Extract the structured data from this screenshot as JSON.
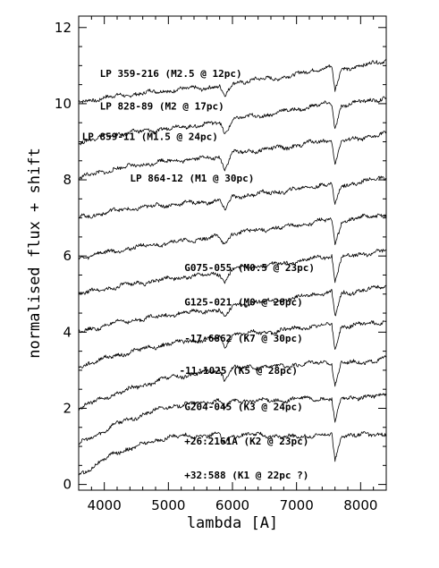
{
  "chart_data": {
    "type": "line",
    "title": "",
    "xlabel": "lambda [A]",
    "ylabel": "normalised flux + shift",
    "xlim": [
      3600,
      8400
    ],
    "ylim": [
      -0.15,
      12.3
    ],
    "x_ticks": [
      4000,
      5000,
      6000,
      7000,
      8000
    ],
    "y_ticks": [
      0,
      2,
      4,
      6,
      8,
      10,
      12
    ],
    "grid": false,
    "legend": "none",
    "line_color": "#000000",
    "series": [
      {
        "name": "LP 359-216 (M2.5 @ 12pc)",
        "label_x": 3930,
        "label_y": 10.7,
        "points": [
          [
            3600,
            10.05
          ],
          [
            4200,
            10.2
          ],
          [
            5000,
            10.35
          ],
          [
            5800,
            10.45
          ],
          [
            5880,
            10.15
          ],
          [
            6000,
            10.55
          ],
          [
            6500,
            10.65
          ],
          [
            6800,
            10.7
          ],
          [
            7000,
            10.75
          ],
          [
            7150,
            10.85
          ],
          [
            7300,
            10.9
          ],
          [
            7550,
            10.95
          ],
          [
            7600,
            10.35
          ],
          [
            7700,
            10.9
          ],
          [
            8000,
            11.0
          ],
          [
            8200,
            11.05
          ],
          [
            8400,
            11.15
          ]
        ]
      },
      {
        "name": "LP 828-89 (M2 @ 17pc)",
        "label_x": 3930,
        "label_y": 9.85,
        "points": [
          [
            3600,
            9.0
          ],
          [
            4200,
            9.2
          ],
          [
            5000,
            9.35
          ],
          [
            5800,
            9.5
          ],
          [
            5880,
            9.2
          ],
          [
            6000,
            9.6
          ],
          [
            6500,
            9.7
          ],
          [
            6800,
            9.8
          ],
          [
            7000,
            9.85
          ],
          [
            7300,
            9.95
          ],
          [
            7550,
            10.0
          ],
          [
            7600,
            9.35
          ],
          [
            7700,
            9.95
          ],
          [
            8000,
            10.05
          ],
          [
            8200,
            10.1
          ],
          [
            8400,
            10.15
          ]
        ]
      },
      {
        "name": "LP 859-11 (M1.5 @ 24pc)",
        "label_x": 3650,
        "label_y": 9.05,
        "points": [
          [
            3600,
            8.05
          ],
          [
            4200,
            8.3
          ],
          [
            5000,
            8.5
          ],
          [
            5800,
            8.6
          ],
          [
            5880,
            8.3
          ],
          [
            6000,
            8.7
          ],
          [
            6500,
            8.8
          ],
          [
            6800,
            8.85
          ],
          [
            7000,
            8.9
          ],
          [
            7300,
            9.0
          ],
          [
            7550,
            9.05
          ],
          [
            7600,
            8.4
          ],
          [
            7700,
            9.0
          ],
          [
            8000,
            9.1
          ],
          [
            8200,
            9.15
          ],
          [
            8400,
            9.2
          ]
        ]
      },
      {
        "name": "LP 864-12 (M1 @ 30pc)",
        "label_x": 4400,
        "label_y": 7.95,
        "points": [
          [
            3600,
            7.0
          ],
          [
            4200,
            7.2
          ],
          [
            5000,
            7.35
          ],
          [
            5800,
            7.45
          ],
          [
            5880,
            7.2
          ],
          [
            6000,
            7.55
          ],
          [
            6500,
            7.65
          ],
          [
            6800,
            7.7
          ],
          [
            7000,
            7.75
          ],
          [
            7300,
            7.85
          ],
          [
            7550,
            7.9
          ],
          [
            7600,
            7.3
          ],
          [
            7700,
            7.85
          ],
          [
            8000,
            7.95
          ],
          [
            8200,
            8.0
          ],
          [
            8400,
            8.05
          ]
        ]
      },
      {
        "name": "G075-055 (M0.5 @ 23pc)",
        "label_x": 5250,
        "label_y": 5.6,
        "points": [
          [
            3600,
            5.95
          ],
          [
            4200,
            6.15
          ],
          [
            5000,
            6.35
          ],
          [
            5800,
            6.5
          ],
          [
            5880,
            6.3
          ],
          [
            6000,
            6.6
          ],
          [
            6500,
            6.7
          ],
          [
            6800,
            6.75
          ],
          [
            7000,
            6.8
          ],
          [
            7300,
            6.9
          ],
          [
            7550,
            6.95
          ],
          [
            7600,
            6.3
          ],
          [
            7700,
            6.9
          ],
          [
            8000,
            7.0
          ],
          [
            8200,
            7.05
          ],
          [
            8400,
            7.1
          ]
        ]
      },
      {
        "name": "G125-021 (M0 @ 20pc)",
        "label_x": 5250,
        "label_y": 4.7,
        "points": [
          [
            3600,
            5.0
          ],
          [
            4200,
            5.2
          ],
          [
            5000,
            5.4
          ],
          [
            5800,
            5.55
          ],
          [
            5880,
            5.3
          ],
          [
            6000,
            5.65
          ],
          [
            6500,
            5.75
          ],
          [
            6800,
            5.8
          ],
          [
            7000,
            5.85
          ],
          [
            7300,
            5.95
          ],
          [
            7550,
            6.0
          ],
          [
            7600,
            5.35
          ],
          [
            7700,
            5.95
          ],
          [
            8000,
            6.05
          ],
          [
            8200,
            6.1
          ],
          [
            8400,
            6.15
          ]
        ]
      },
      {
        "name": "-17:6862 (K7 @ 30pc)",
        "label_x": 5250,
        "label_y": 3.75,
        "points": [
          [
            3600,
            4.0
          ],
          [
            4200,
            4.25
          ],
          [
            5000,
            4.45
          ],
          [
            5800,
            4.6
          ],
          [
            5880,
            4.35
          ],
          [
            6000,
            4.7
          ],
          [
            6500,
            4.8
          ],
          [
            6800,
            4.85
          ],
          [
            7000,
            4.9
          ],
          [
            7300,
            5.0
          ],
          [
            7550,
            5.05
          ],
          [
            7600,
            4.4
          ],
          [
            7700,
            5.0
          ],
          [
            8000,
            5.1
          ],
          [
            8200,
            5.15
          ],
          [
            8400,
            5.2
          ]
        ]
      },
      {
        "name": "-11:1025 (K5 @ 28pc)",
        "label_x": 5170,
        "label_y": 2.9,
        "points": [
          [
            3600,
            3.1
          ],
          [
            4200,
            3.4
          ],
          [
            5000,
            3.7
          ],
          [
            5800,
            3.85
          ],
          [
            5880,
            3.6
          ],
          [
            6000,
            3.95
          ],
          [
            6500,
            4.0
          ],
          [
            6800,
            4.05
          ],
          [
            7000,
            4.1
          ],
          [
            7300,
            4.15
          ],
          [
            7550,
            4.2
          ],
          [
            7600,
            3.55
          ],
          [
            7700,
            4.15
          ],
          [
            8000,
            4.2
          ],
          [
            8200,
            4.25
          ],
          [
            8400,
            4.3
          ]
        ]
      },
      {
        "name": "G204-045 (K3 @ 24pc)",
        "label_x": 5250,
        "label_y": 1.95,
        "points": [
          [
            3600,
            2.0
          ],
          [
            4200,
            2.4
          ],
          [
            5000,
            2.8
          ],
          [
            5800,
            3.0
          ],
          [
            5880,
            2.75
          ],
          [
            6000,
            3.05
          ],
          [
            6500,
            3.1
          ],
          [
            6800,
            3.1
          ],
          [
            7000,
            3.15
          ],
          [
            7300,
            3.2
          ],
          [
            7550,
            3.2
          ],
          [
            7600,
            2.6
          ],
          [
            7700,
            3.2
          ],
          [
            8000,
            3.2
          ],
          [
            8200,
            3.25
          ],
          [
            8400,
            3.3
          ]
        ]
      },
      {
        "name": "+26:2161A (K2 @ 23pc)",
        "label_x": 5250,
        "label_y": 1.05,
        "points": [
          [
            3600,
            1.05
          ],
          [
            4200,
            1.6
          ],
          [
            5000,
            2.05
          ],
          [
            5800,
            2.2
          ],
          [
            5880,
            2.0
          ],
          [
            6000,
            2.2
          ],
          [
            6500,
            2.2
          ],
          [
            6800,
            2.2
          ],
          [
            7000,
            2.25
          ],
          [
            7300,
            2.25
          ],
          [
            7550,
            2.25
          ],
          [
            7600,
            1.6
          ],
          [
            7700,
            2.25
          ],
          [
            8000,
            2.3
          ],
          [
            8200,
            2.3
          ],
          [
            8400,
            2.35
          ]
        ]
      },
      {
        "name": "+32:588 (K1 @ 22pc ?)",
        "label_x": 5250,
        "label_y": 0.15,
        "points": [
          [
            3600,
            0.25
          ],
          [
            4200,
            0.85
          ],
          [
            5000,
            1.25
          ],
          [
            5800,
            1.3
          ],
          [
            5880,
            1.1
          ],
          [
            6000,
            1.3
          ],
          [
            6500,
            1.3
          ],
          [
            6800,
            1.25
          ],
          [
            7000,
            1.25
          ],
          [
            7300,
            1.3
          ],
          [
            7550,
            1.3
          ],
          [
            7600,
            0.6
          ],
          [
            7700,
            1.3
          ],
          [
            8000,
            1.3
          ],
          [
            8200,
            1.3
          ],
          [
            8400,
            1.35
          ]
        ]
      }
    ]
  }
}
